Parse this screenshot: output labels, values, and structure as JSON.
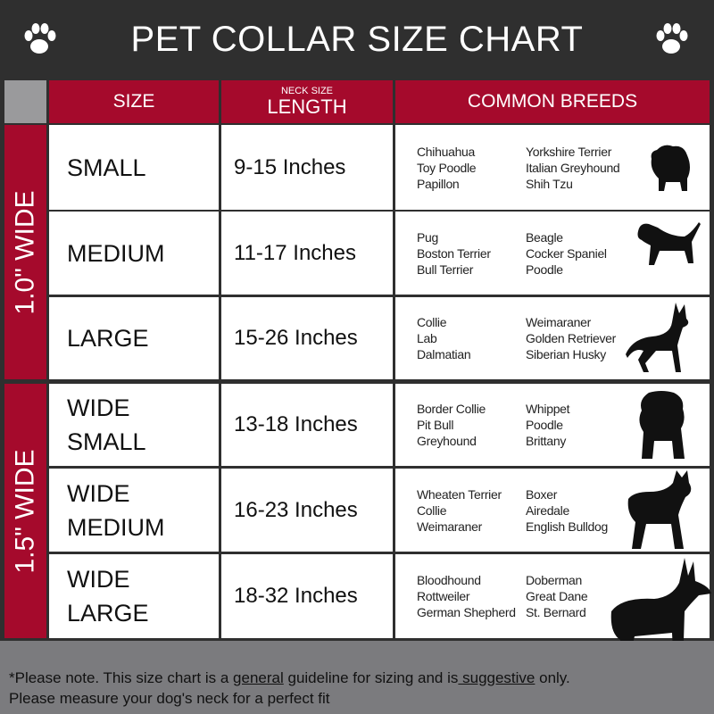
{
  "title": "PET COLLAR SIZE CHART",
  "header": {
    "size": "SIZE",
    "length_small": "NECK SIZE",
    "length": "LENGTH",
    "breeds": "COMMON BREEDS"
  },
  "groups": [
    {
      "label": "1.0\" WIDE"
    },
    {
      "label": "1.5\" WIDE"
    }
  ],
  "rows": [
    {
      "size": [
        "SMALL"
      ],
      "length": "9-15   Inches",
      "breeds_a": [
        "Chihuahua",
        "Toy Poodle",
        "Papillon"
      ],
      "breeds_b": [
        "Yorkshire Terrier",
        "Italian Greyhound",
        "Shih Tzu"
      ],
      "icon": "small-dog-icon"
    },
    {
      "size": [
        "MEDIUM"
      ],
      "length": "11-17 Inches",
      "breeds_a": [
        "Pug",
        "Boston Terrier",
        "Bull Terrier"
      ],
      "breeds_b": [
        "Beagle",
        "Cocker Spaniel",
        "Poodle"
      ],
      "icon": "dachshund-icon"
    },
    {
      "size": [
        "LARGE"
      ],
      "length": "15-26 Inches",
      "breeds_a": [
        "Collie",
        "Lab",
        "Dalmatian"
      ],
      "breeds_b": [
        "Weimaraner",
        "Golden Retriever",
        "Siberian Husky"
      ],
      "icon": "shepherd-dog-icon"
    },
    {
      "size": [
        "WIDE",
        "SMALL"
      ],
      "length": "13-18 Inches",
      "breeds_a": [
        "Border Collie",
        "Pit Bull",
        "Greyhound"
      ],
      "breeds_b": [
        "Whippet",
        "Poodle",
        "Brittany"
      ],
      "icon": "bulldog-icon"
    },
    {
      "size": [
        "WIDE",
        "MEDIUM"
      ],
      "length": "16-23 Inches",
      "breeds_a": [
        "Wheaten Terrier",
        "Collie",
        "Weimaraner"
      ],
      "breeds_b": [
        "Boxer",
        "Airedale",
        "English Bulldog"
      ],
      "icon": "pitbull-icon"
    },
    {
      "size": [
        "WIDE",
        "LARGE"
      ],
      "length": "18-32 Inches",
      "breeds_a": [
        "Bloodhound",
        "Rottweiler",
        "German Shepherd"
      ],
      "breeds_b": [
        "Doberman",
        "Great Dane",
        "St. Bernard"
      ],
      "icon": "doberman-icon"
    }
  ],
  "footer": {
    "p1": "*Please note. This size chart is a ",
    "u1": "general",
    "p2": " guideline for sizing and is",
    "u2": " suggestive",
    "p3": " only.",
    "line2": "Please measure your dog's neck for a perfect fit"
  },
  "colors": {
    "header_bg": "#2f2f2f",
    "accent": "#a50a2c",
    "footer": "#7b7b7e"
  }
}
